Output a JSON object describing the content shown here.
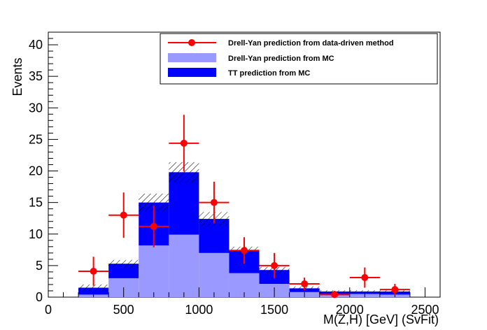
{
  "chart_data": {
    "type": "bar",
    "xlabel": "M(Z,H) [GeV] (SvFit)",
    "ylabel": "Events",
    "xlim": [
      0,
      2600
    ],
    "ylim": [
      0,
      42
    ],
    "bins": [
      [
        200,
        400
      ],
      [
        400,
        600
      ],
      [
        600,
        800
      ],
      [
        800,
        1000
      ],
      [
        1000,
        1200
      ],
      [
        1200,
        1400
      ],
      [
        1400,
        1600
      ],
      [
        1600,
        1800
      ],
      [
        1800,
        2000
      ],
      [
        2000,
        2200
      ],
      [
        2200,
        2400
      ]
    ],
    "x_ticks": [
      0,
      500,
      1000,
      1500,
      2000,
      2500
    ],
    "x_tick_labels": [
      "0",
      "500",
      "1000",
      "1500",
      "2000",
      "2500"
    ],
    "y_ticks": [
      0,
      5,
      10,
      15,
      20,
      25,
      30,
      35,
      40
    ],
    "y_tick_labels": [
      "0",
      "5",
      "10",
      "15",
      "20",
      "25",
      "30",
      "35",
      "40"
    ],
    "series": [
      {
        "name": "Drell-Yan prediction from MC",
        "kind": "stack-bottom",
        "color": "#9999ff",
        "values": [
          0.4,
          3.0,
          8.2,
          9.9,
          7.0,
          3.8,
          2.1,
          0.8,
          0.4,
          0.5,
          0.4
        ]
      },
      {
        "name": "TT prediction from MC",
        "kind": "stack-top",
        "color": "#0000ff",
        "values": [
          1.1,
          2.3,
          6.8,
          9.9,
          5.4,
          3.6,
          2.2,
          0.6,
          0.5,
          0.4,
          0.5
        ],
        "total_uncertainty": [
          0.5,
          0.6,
          1.4,
          1.6,
          1.1,
          0.6,
          0.5,
          0.3,
          0.2,
          0.2,
          0.2
        ]
      },
      {
        "name": "Drell-Yan prediction from data-driven method",
        "kind": "points",
        "color": "#ff0000",
        "x": [
          300,
          500,
          700,
          900,
          1100,
          1300,
          1500,
          1700,
          1900,
          2100,
          2300
        ],
        "values": [
          4.1,
          13.0,
          11.2,
          24.4,
          15.0,
          7.4,
          5.0,
          2.1,
          0.4,
          3.1,
          1.2
        ],
        "errors": [
          2.3,
          3.6,
          3.3,
          4.5,
          3.3,
          2.1,
          2.0,
          1.0,
          0.6,
          1.6,
          0.9
        ]
      }
    ],
    "legend_position": "top-right"
  }
}
